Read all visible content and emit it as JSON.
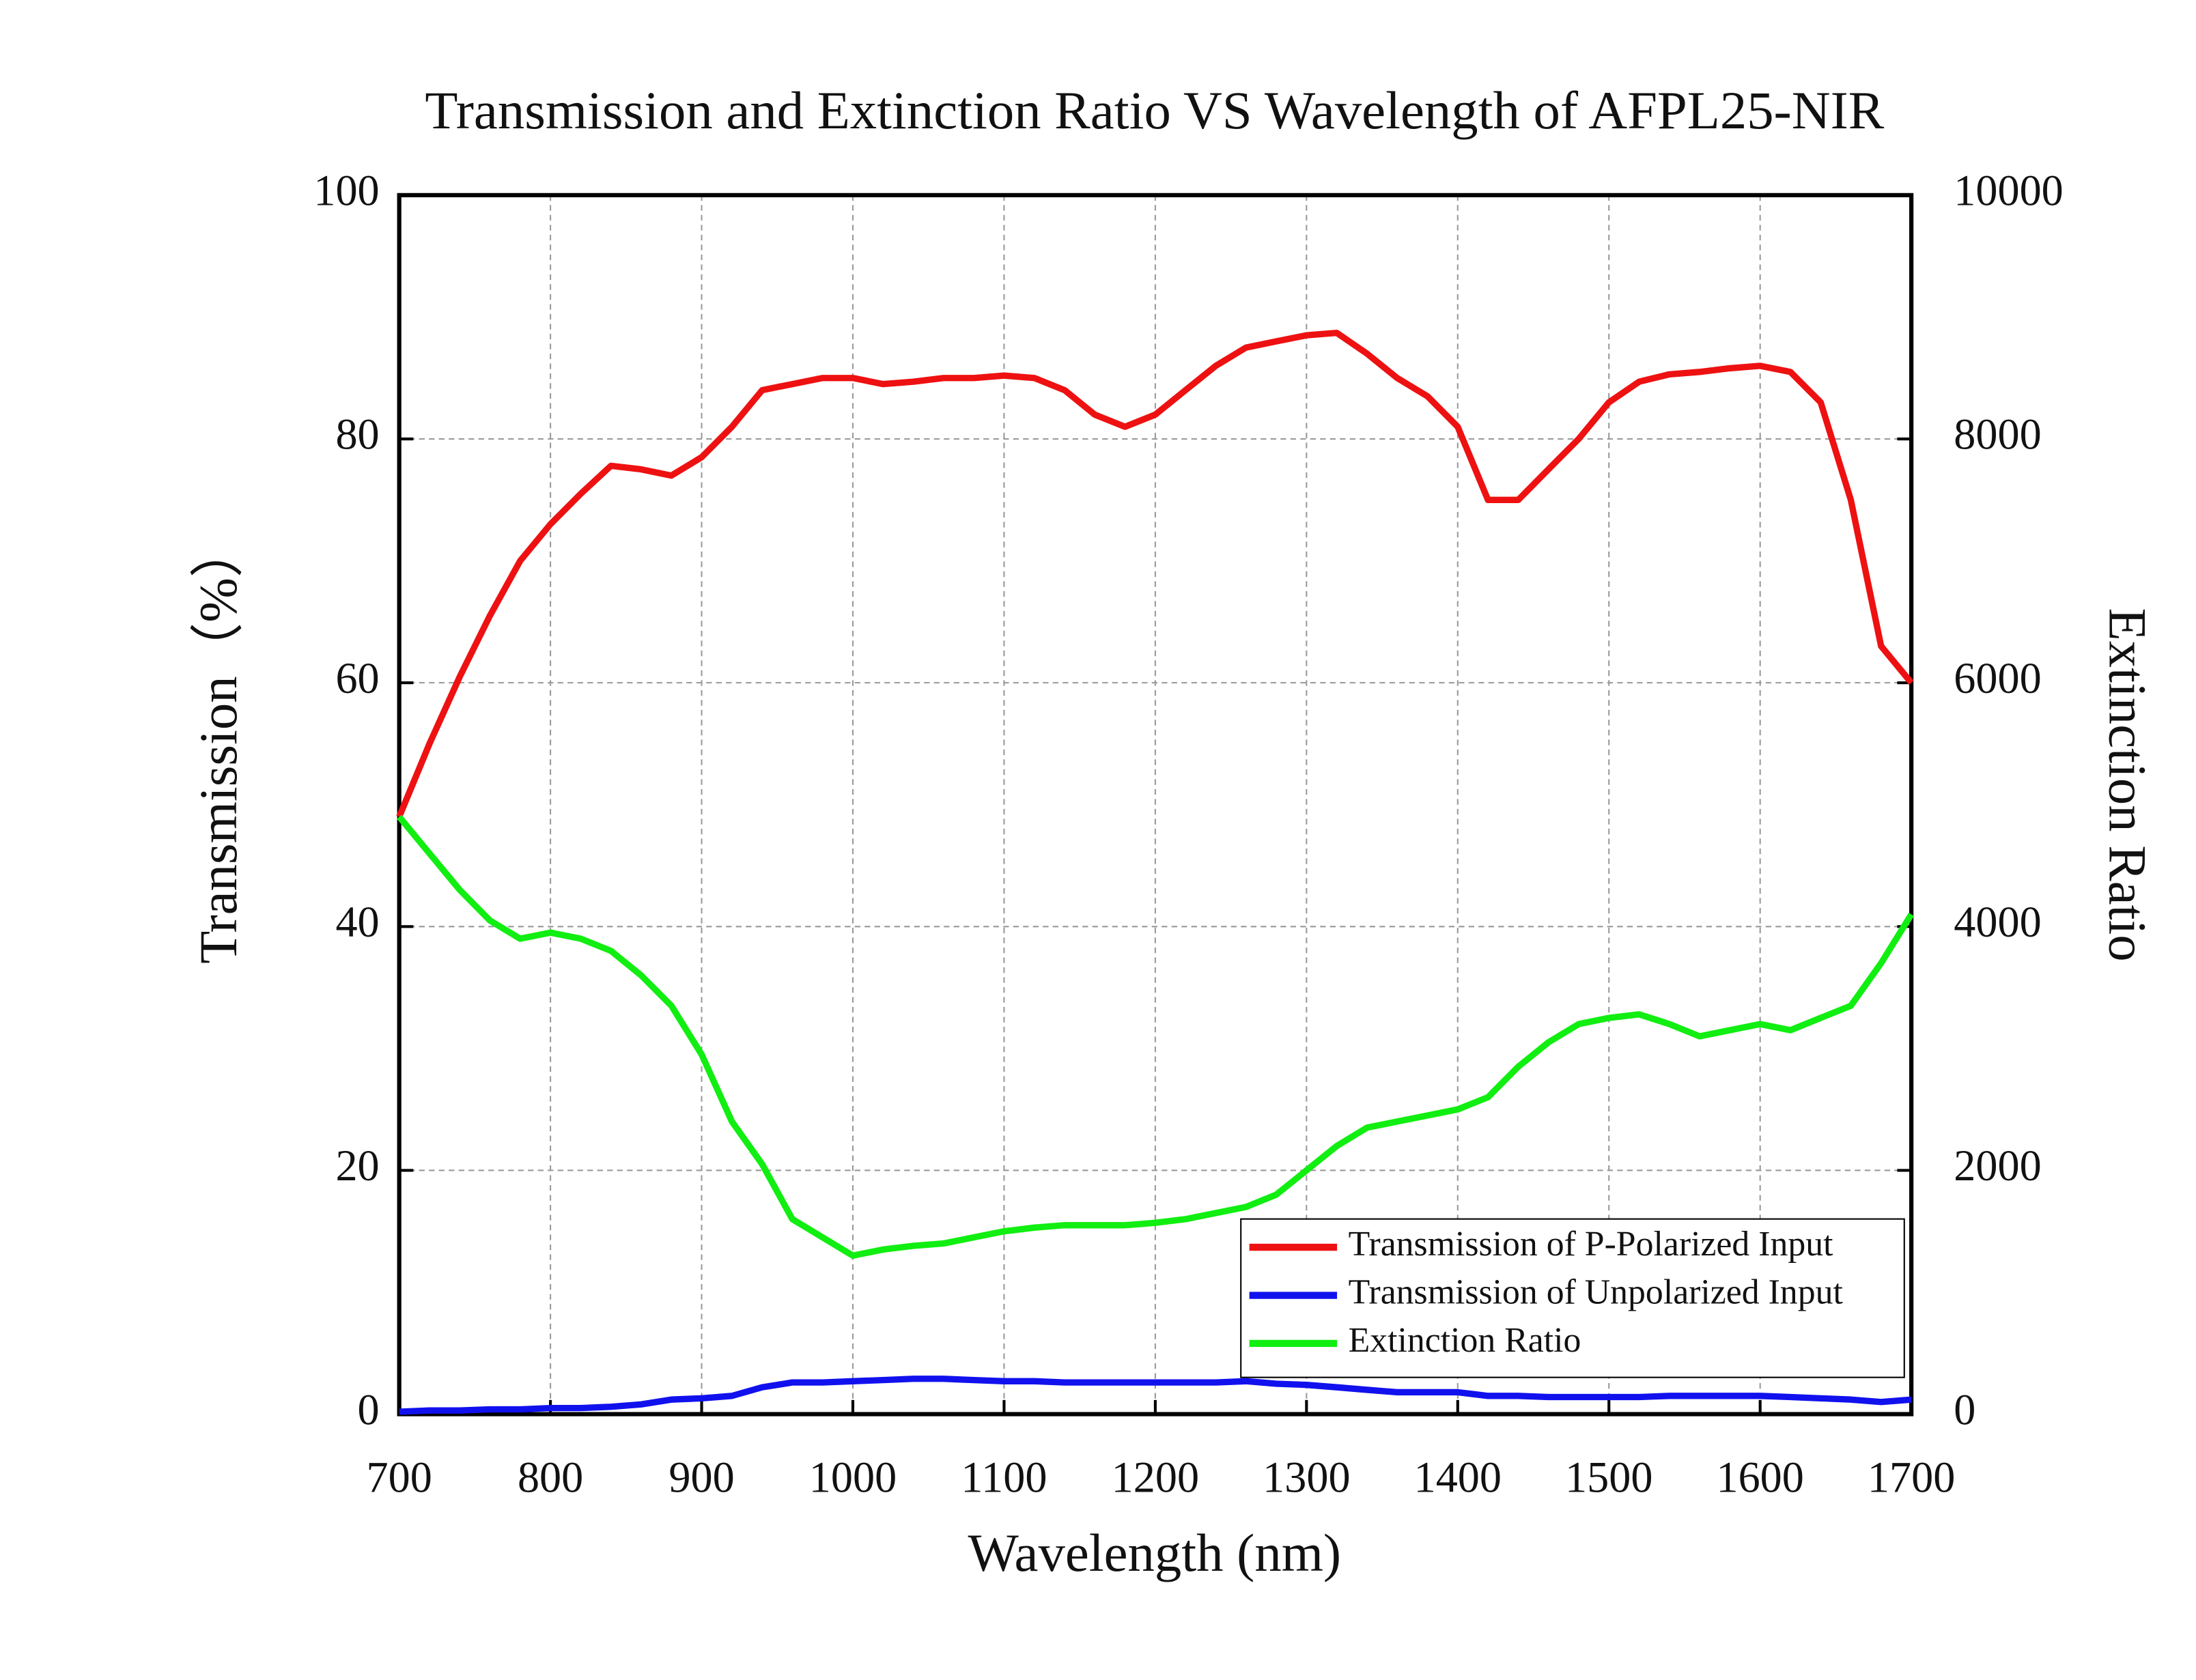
{
  "chart_data": {
    "type": "line",
    "title": "Transmission and Extinction Ratio VS Wavelength of AFPL25-NIR",
    "x_label": "Wavelength (nm)",
    "y_label": "Transmission（%）",
    "y2_label": "Extinction Ratio",
    "x": [
      700,
      720,
      740,
      760,
      780,
      800,
      820,
      840,
      860,
      880,
      900,
      920,
      940,
      960,
      980,
      1000,
      1020,
      1040,
      1060,
      1080,
      1100,
      1120,
      1140,
      1160,
      1180,
      1200,
      1220,
      1240,
      1260,
      1280,
      1300,
      1320,
      1340,
      1360,
      1380,
      1400,
      1420,
      1440,
      1460,
      1480,
      1500,
      1520,
      1540,
      1560,
      1580,
      1600,
      1620,
      1640,
      1660,
      1680,
      1700
    ],
    "series": [
      {
        "name": "Transmission of P-Polarized Input",
        "color": "#ee1111",
        "values": [
          49,
          55,
          60.5,
          65.5,
          70,
          73,
          75.5,
          77.8,
          77.5,
          77,
          78.5,
          81,
          84,
          84.5,
          85,
          85,
          84.5,
          84.7,
          85,
          85,
          85.2,
          85,
          84,
          82,
          81,
          82,
          84,
          86,
          87.5,
          88,
          88.5,
          88.7,
          87,
          85,
          83.5,
          81,
          75,
          75,
          77.5,
          80,
          83,
          84.7,
          85.3,
          85.5,
          85.8,
          86,
          85.5,
          83,
          75,
          63,
          60
        ]
      },
      {
        "name": "Transmission of Unpolarized Input",
        "color": "#1111ee",
        "values": [
          0.2,
          0.3,
          0.3,
          0.4,
          0.4,
          0.5,
          0.5,
          0.6,
          0.8,
          1.2,
          1.3,
          1.5,
          2.2,
          2.6,
          2.6,
          2.7,
          2.8,
          2.9,
          2.9,
          2.8,
          2.7,
          2.7,
          2.6,
          2.6,
          2.6,
          2.6,
          2.6,
          2.6,
          2.7,
          2.5,
          2.4,
          2.2,
          2,
          1.8,
          1.8,
          1.8,
          1.5,
          1.5,
          1.4,
          1.4,
          1.4,
          1.4,
          1.5,
          1.5,
          1.5,
          1.5,
          1.4,
          1.3,
          1.2,
          1.0,
          1.2
        ]
      },
      {
        "name": "Extinction Ratio",
        "color": "#11ee11",
        "axis": "y2",
        "values": [
          4900,
          4600,
          4300,
          4050,
          3900,
          3950,
          3900,
          3800,
          3600,
          3350,
          2950,
          2400,
          2050,
          1600,
          1450,
          1300,
          1350,
          1380,
          1400,
          1450,
          1500,
          1530,
          1550,
          1550,
          1550,
          1570,
          1600,
          1650,
          1700,
          1800,
          2000,
          2200,
          2350,
          2400,
          2450,
          2500,
          2600,
          2850,
          3050,
          3200,
          3250,
          3280,
          3200,
          3100,
          3150,
          3200,
          3150,
          3250,
          3350,
          3700,
          4100
        ]
      }
    ],
    "xlim": [
      700,
      1700
    ],
    "xticks": [
      700,
      800,
      900,
      1000,
      1100,
      1200,
      1300,
      1400,
      1500,
      1600,
      1700
    ],
    "ylim": [
      0,
      100
    ],
    "yticks": [
      0,
      20,
      40,
      60,
      80,
      100
    ],
    "y2lim": [
      0,
      10000
    ],
    "y2ticks": [
      0,
      2000,
      4000,
      6000,
      8000,
      10000
    ],
    "grid": true,
    "legend": "lower right"
  }
}
